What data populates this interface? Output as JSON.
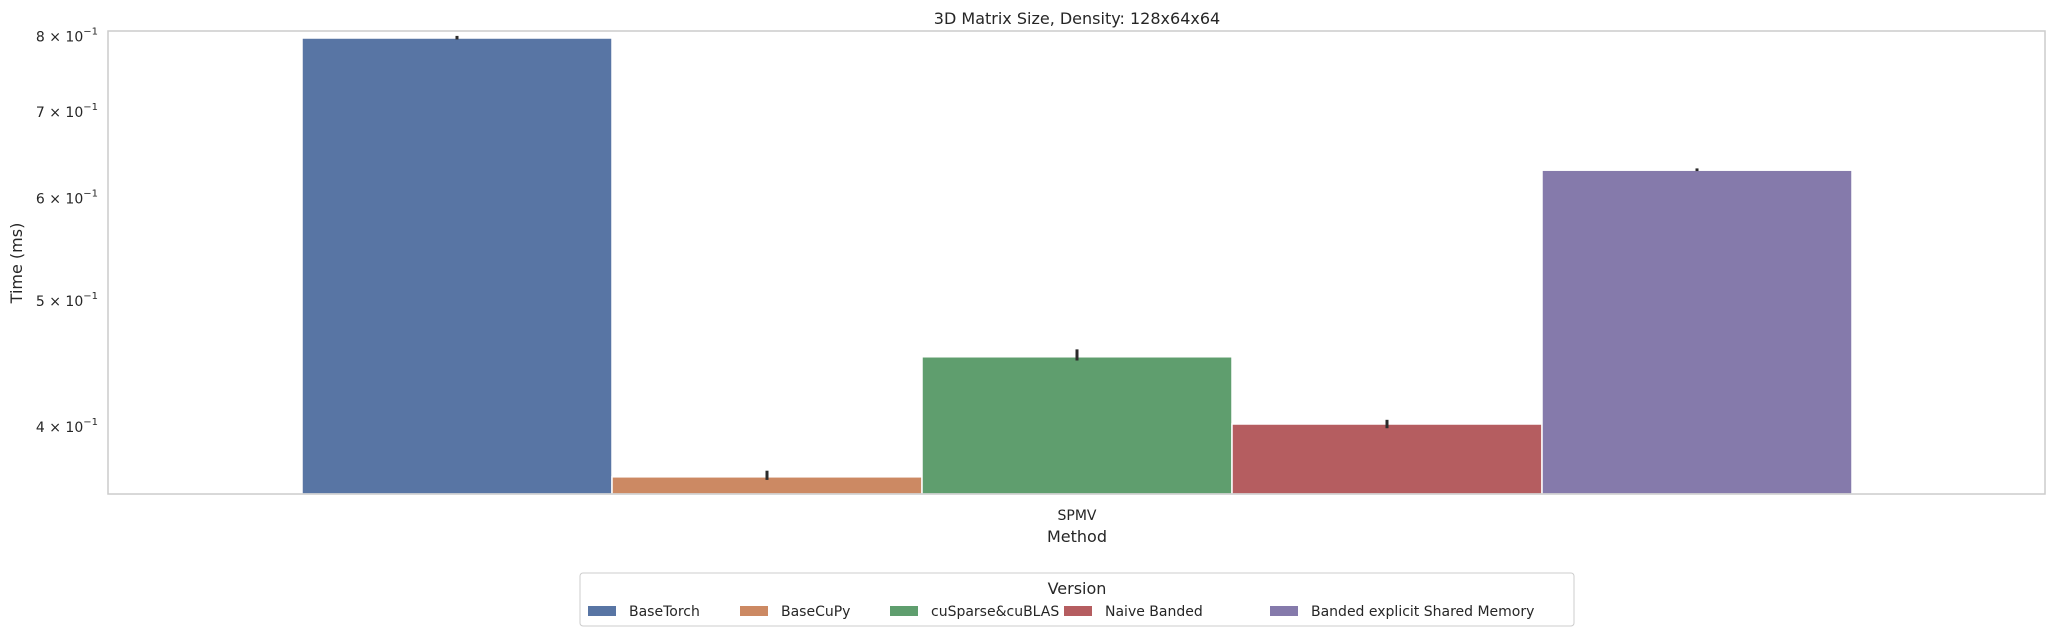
{
  "chart_data": {
    "type": "bar",
    "title": "3D Matrix Size, Density: 128x64x64",
    "xlabel": "Method",
    "ylabel": "Time (ms)",
    "yscale": "log",
    "ylim": [
      0.355,
      0.808
    ],
    "grid": false,
    "categories": [
      "SPMV"
    ],
    "yticks": [
      {
        "value": 0.4,
        "label": "4 × 10"
      },
      {
        "value": 0.5,
        "label": "5 × 10"
      },
      {
        "value": 0.6,
        "label": "6 × 10"
      },
      {
        "value": 0.7,
        "label": "7 × 10"
      },
      {
        "value": 0.8,
        "label": "8 × 10"
      }
    ],
    "ytick_exponent": "−1",
    "legend": {
      "title": "Version",
      "placement": "bottom-center"
    },
    "series": [
      {
        "name": "BaseTorch",
        "color": "#5875a4",
        "values": [
          0.798
        ],
        "err": [
          [
            0.796,
            0.801
          ]
        ]
      },
      {
        "name": "BaseCuPy",
        "color": "#cc8963",
        "values": [
          0.366
        ],
        "err": [
          [
            0.364,
            0.37
          ]
        ]
      },
      {
        "name": "cuSparse&cuBLAS",
        "color": "#5f9e6e",
        "values": [
          0.453
        ],
        "err": [
          [
            0.45,
            0.459
          ]
        ]
      },
      {
        "name": "Naive Banded",
        "color": "#b55d60",
        "values": [
          0.402
        ],
        "err": [
          [
            0.399,
            0.405
          ]
        ]
      },
      {
        "name": "Banded explicit Shared Memory",
        "color": "#857aab",
        "values": [
          0.631
        ],
        "err": [
          [
            0.63,
            0.633
          ]
        ]
      }
    ]
  }
}
